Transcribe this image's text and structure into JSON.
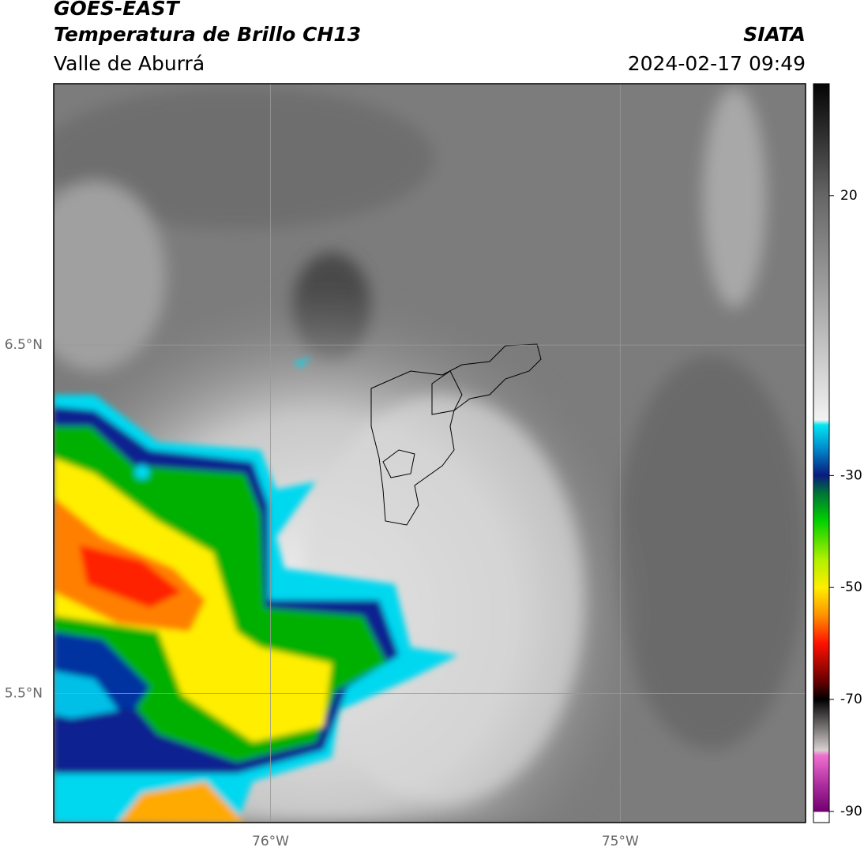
{
  "header": {
    "title": "GOES-EAST",
    "subtitle": "Temperatura de Brillo CH13",
    "region": "Valle de Aburrá",
    "source": "SIATA",
    "datetime": "2024-02-17 09:49"
  },
  "map": {
    "xlim": [
      -76.62,
      -74.47
    ],
    "ylim": [
      5.13,
      7.25
    ],
    "xticks": [
      {
        "value": -76,
        "label": "76°W"
      },
      {
        "value": -75,
        "label": "75°W"
      }
    ],
    "yticks": [
      {
        "value": 6.5,
        "label": "6.5°N"
      },
      {
        "value": 5.5,
        "label": "5.5°N"
      }
    ],
    "grid": true
  },
  "colorbar": {
    "lim": [
      -92,
      40
    ],
    "ticks": [
      20,
      -30,
      -50,
      -70,
      -90
    ]
  }
}
